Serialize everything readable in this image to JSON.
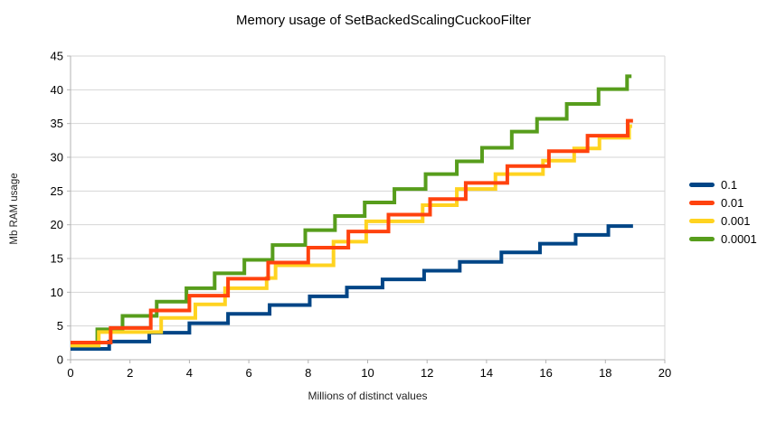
{
  "title": "Memory usage of SetBackedScalingCuckooFilter",
  "chart_data": {
    "type": "line",
    "step": true,
    "title": "Memory usage of SetBackedScalingCuckooFilter",
    "xlabel": "Millions of distinct values",
    "ylabel": "Mb RAM usage",
    "xlim": [
      0,
      20
    ],
    "ylim": [
      0,
      45
    ],
    "xticks": [
      0,
      2,
      4,
      6,
      8,
      10,
      12,
      14,
      16,
      18,
      20
    ],
    "yticks": [
      0,
      5,
      10,
      15,
      20,
      25,
      30,
      35,
      40,
      45
    ],
    "grid": "horizontal",
    "legend_position": "right",
    "draw_order": [
      "0.1",
      "0.0001",
      "0.001",
      "0.01"
    ],
    "series": [
      {
        "name": "0.1",
        "color": "#004586",
        "x_end": 18.93,
        "points": [
          [
            0,
            1.6
          ],
          [
            1.3,
            2.7
          ],
          [
            2.65,
            4.0
          ],
          [
            4.0,
            5.4
          ],
          [
            5.3,
            6.8
          ],
          [
            6.7,
            8.1
          ],
          [
            8.05,
            9.4
          ],
          [
            9.3,
            10.7
          ],
          [
            10.5,
            11.9
          ],
          [
            11.9,
            13.2
          ],
          [
            13.1,
            14.5
          ],
          [
            14.5,
            15.9
          ],
          [
            15.8,
            17.2
          ],
          [
            17.0,
            18.5
          ],
          [
            18.1,
            19.8
          ]
        ]
      },
      {
        "name": "0.01",
        "color": "#FF420E",
        "x_end": 18.93,
        "points": [
          [
            0,
            2.55
          ],
          [
            1.35,
            4.7
          ],
          [
            2.7,
            7.3
          ],
          [
            4.0,
            9.5
          ],
          [
            5.3,
            12.0
          ],
          [
            6.65,
            14.4
          ],
          [
            8.0,
            16.6
          ],
          [
            9.35,
            19.0
          ],
          [
            10.7,
            21.5
          ],
          [
            12.1,
            23.8
          ],
          [
            13.3,
            26.2
          ],
          [
            14.7,
            28.7
          ],
          [
            16.1,
            30.9
          ],
          [
            17.4,
            33.2
          ],
          [
            18.75,
            35.4
          ]
        ]
      },
      {
        "name": "0.001",
        "color": "#FFD320",
        "x_end": 18.9,
        "points": [
          [
            0,
            2.1
          ],
          [
            0.95,
            4.1
          ],
          [
            3.05,
            6.2
          ],
          [
            4.2,
            8.2
          ],
          [
            5.2,
            10.6
          ],
          [
            6.6,
            12.1
          ],
          [
            6.9,
            14.0
          ],
          [
            8.85,
            17.5
          ],
          [
            9.95,
            20.5
          ],
          [
            11.85,
            22.9
          ],
          [
            13.0,
            25.3
          ],
          [
            14.3,
            27.5
          ],
          [
            15.9,
            29.5
          ],
          [
            16.95,
            31.3
          ],
          [
            17.8,
            32.9
          ],
          [
            18.8,
            34.6
          ]
        ]
      },
      {
        "name": "0.0001",
        "color": "#579D1C",
        "x_end": 18.88,
        "points": [
          [
            0,
            2.5
          ],
          [
            0.9,
            4.5
          ],
          [
            1.75,
            6.5
          ],
          [
            2.9,
            8.6
          ],
          [
            3.9,
            10.6
          ],
          [
            4.85,
            12.8
          ],
          [
            5.85,
            14.8
          ],
          [
            6.8,
            17.0
          ],
          [
            7.9,
            19.2
          ],
          [
            8.9,
            21.3
          ],
          [
            9.9,
            23.3
          ],
          [
            10.9,
            25.3
          ],
          [
            11.95,
            27.5
          ],
          [
            13.0,
            29.4
          ],
          [
            13.85,
            31.4
          ],
          [
            14.85,
            33.8
          ],
          [
            15.7,
            35.7
          ],
          [
            16.7,
            37.9
          ],
          [
            17.77,
            40.1
          ],
          [
            18.73,
            42.0
          ]
        ]
      }
    ],
    "colors": {
      "grid": "#d6d6d6",
      "axis": "#b3b3b3",
      "tick_text": "#000000"
    }
  }
}
